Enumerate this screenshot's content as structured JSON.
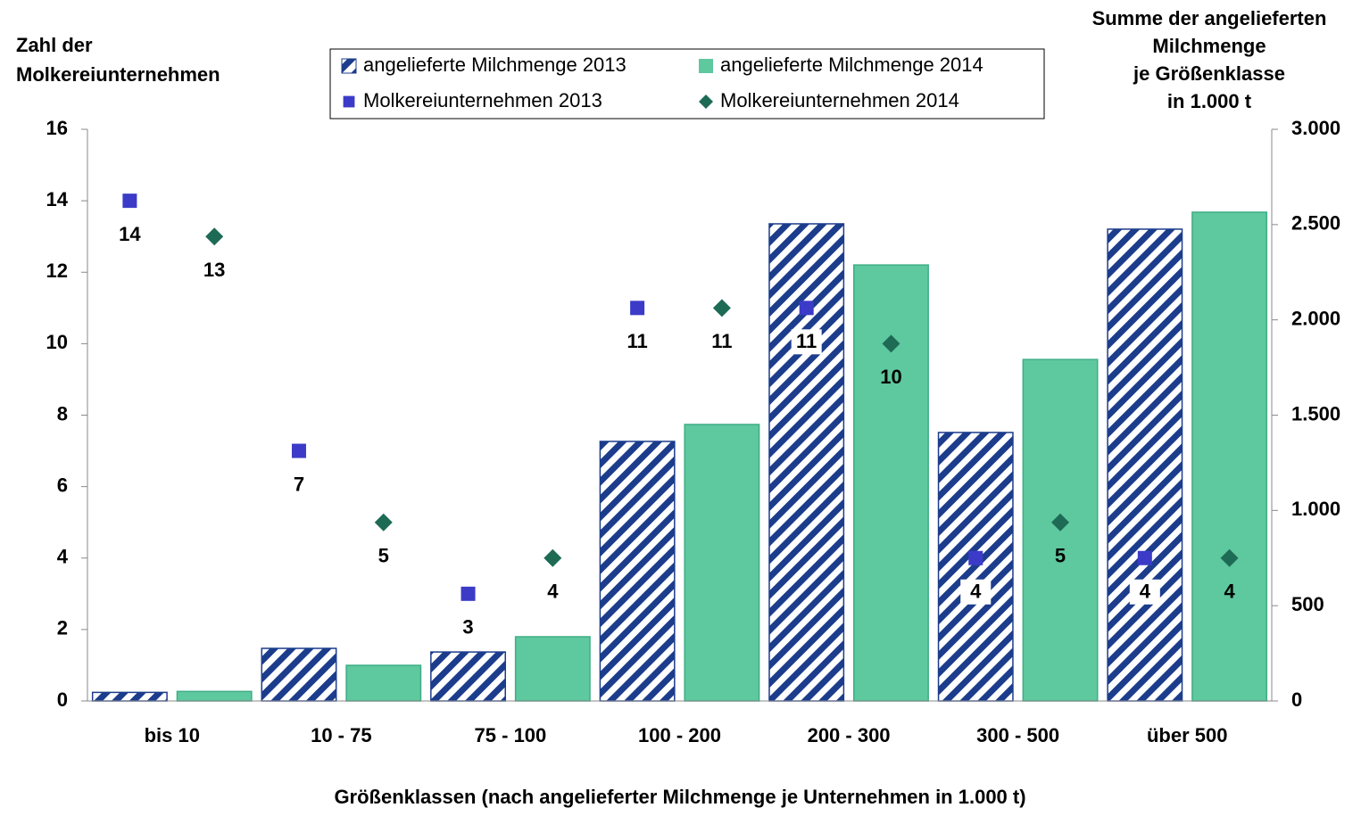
{
  "chart_data": {
    "type": "bar",
    "ylabel": [
      "Zahl der",
      "Molkereiunternehmen"
    ],
    "y2label": [
      "Summe der angelieferten",
      "Milchmenge",
      "je Größenklasse",
      "in 1.000 t"
    ],
    "xlabel": "Größenklassen (nach angelieferter Milchmenge je Unternehmen in 1.000 t)",
    "categories": [
      "bis 10",
      "10 - 75",
      "75 - 100",
      "100 - 200",
      "200 - 300",
      "300 - 500",
      "über 500"
    ],
    "ylim": [
      0,
      16
    ],
    "yticks": [
      0,
      2,
      4,
      6,
      8,
      10,
      12,
      14,
      16
    ],
    "y2lim": [
      0,
      3000
    ],
    "y2ticks": [
      0,
      500,
      {
        "value": 1000,
        "label": "1.000"
      },
      {
        "value": 1500,
        "label": "1.500"
      },
      {
        "value": 2000,
        "label": "2.000"
      },
      {
        "value": 2500,
        "label": "2.500"
      },
      {
        "value": 3000,
        "label": "3.000"
      }
    ],
    "series": [
      {
        "name": "angelieferte Milchmenge 2013",
        "type": "bar",
        "axis": "y2",
        "pattern": "hatch",
        "color": "#1c3c8c",
        "values": [
          45,
          276,
          257,
          1362,
          2504,
          1409,
          2476
        ]
      },
      {
        "name": "angelieferte Milchmenge 2014",
        "type": "bar",
        "axis": "y2",
        "color": "#5ec89f",
        "values": [
          50,
          187,
          337,
          1451,
          2288,
          1792,
          2565
        ]
      },
      {
        "name": "Molkereiunternehmen 2013",
        "type": "scatter",
        "marker": "square",
        "color": "#3b3bc8",
        "values": [
          14,
          7,
          3,
          11,
          11,
          4,
          4
        ]
      },
      {
        "name": "Molkereiunternehmen 2014",
        "type": "scatter",
        "marker": "diamond",
        "color": "#1e6b55",
        "values": [
          13,
          5,
          4,
          11,
          10,
          5,
          4
        ]
      }
    ]
  }
}
